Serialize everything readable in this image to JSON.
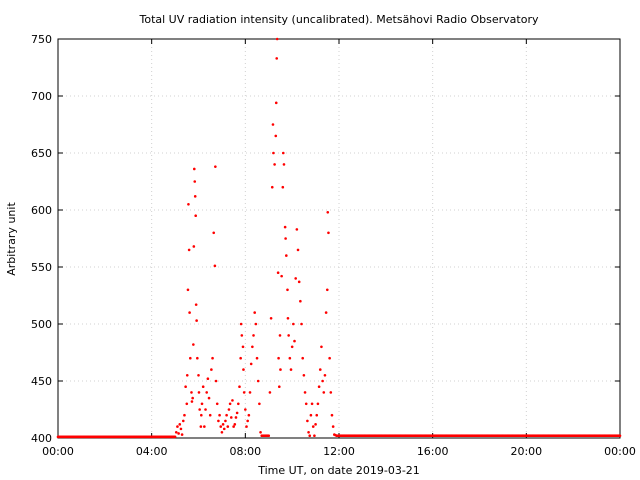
{
  "chart_data": {
    "type": "scatter",
    "title": "Total UV radiation intensity (uncalibrated). Metsähovi Radio Observatory",
    "xlabel": "Time UT, on date 2019-03-21",
    "ylabel": "Arbitrary unit",
    "xlim": [
      "00:00",
      "24:00"
    ],
    "ylim": [
      400,
      750
    ],
    "x_ticks": [
      "00:00",
      "04:00",
      "08:00",
      "12:00",
      "16:00",
      "20:00",
      "00:00"
    ],
    "y_ticks": [
      "400",
      "450",
      "500",
      "550",
      "600",
      "650",
      "700",
      "750"
    ],
    "grid": true,
    "marker_color": "#ff0000",
    "x_unit": "hours UT",
    "points": [
      [
        0.0,
        401
      ],
      [
        0.5,
        401
      ],
      [
        1.0,
        401
      ],
      [
        1.5,
        401
      ],
      [
        2.0,
        401
      ],
      [
        2.5,
        401
      ],
      [
        3.0,
        401
      ],
      [
        3.5,
        401
      ],
      [
        4.0,
        401
      ],
      [
        4.5,
        401
      ],
      [
        5.0,
        401
      ],
      [
        5.05,
        405
      ],
      [
        5.1,
        410
      ],
      [
        5.15,
        404
      ],
      [
        5.2,
        412
      ],
      [
        5.25,
        408
      ],
      [
        5.3,
        403
      ],
      [
        5.35,
        415
      ],
      [
        5.4,
        420
      ],
      [
        5.45,
        445
      ],
      [
        5.5,
        430
      ],
      [
        5.52,
        455
      ],
      [
        5.55,
        530
      ],
      [
        5.57,
        605
      ],
      [
        5.6,
        565
      ],
      [
        5.62,
        510
      ],
      [
        5.65,
        470
      ],
      [
        5.7,
        440
      ],
      [
        5.72,
        432
      ],
      [
        5.75,
        435
      ],
      [
        5.78,
        482
      ],
      [
        5.8,
        568
      ],
      [
        5.82,
        636
      ],
      [
        5.84,
        625
      ],
      [
        5.86,
        612
      ],
      [
        5.88,
        595
      ],
      [
        5.9,
        517
      ],
      [
        5.92,
        503
      ],
      [
        5.95,
        470
      ],
      [
        6.0,
        455
      ],
      [
        6.02,
        440
      ],
      [
        6.05,
        425
      ],
      [
        6.1,
        410
      ],
      [
        6.12,
        420
      ],
      [
        6.15,
        430
      ],
      [
        6.2,
        445
      ],
      [
        6.25,
        410
      ],
      [
        6.3,
        425
      ],
      [
        6.35,
        440
      ],
      [
        6.4,
        452
      ],
      [
        6.45,
        435
      ],
      [
        6.5,
        420
      ],
      [
        6.55,
        460
      ],
      [
        6.6,
        470
      ],
      [
        6.65,
        580
      ],
      [
        6.7,
        551
      ],
      [
        6.72,
        638
      ],
      [
        6.75,
        450
      ],
      [
        6.8,
        430
      ],
      [
        6.85,
        415
      ],
      [
        6.9,
        420
      ],
      [
        6.95,
        410
      ],
      [
        7.0,
        405
      ],
      [
        7.05,
        412
      ],
      [
        7.1,
        408
      ],
      [
        7.15,
        415
      ],
      [
        7.2,
        420
      ],
      [
        7.25,
        410
      ],
      [
        7.3,
        425
      ],
      [
        7.35,
        430
      ],
      [
        7.4,
        418
      ],
      [
        7.45,
        433
      ],
      [
        7.5,
        410
      ],
      [
        7.55,
        412
      ],
      [
        7.6,
        418
      ],
      [
        7.65,
        422
      ],
      [
        7.7,
        430
      ],
      [
        7.75,
        445
      ],
      [
        7.8,
        470
      ],
      [
        7.82,
        500
      ],
      [
        7.85,
        490
      ],
      [
        7.9,
        480
      ],
      [
        7.92,
        460
      ],
      [
        7.95,
        440
      ],
      [
        8.0,
        425
      ],
      [
        8.05,
        410
      ],
      [
        8.1,
        415
      ],
      [
        8.15,
        420
      ],
      [
        8.2,
        440
      ],
      [
        8.25,
        465
      ],
      [
        8.3,
        480
      ],
      [
        8.35,
        490
      ],
      [
        8.4,
        510
      ],
      [
        8.45,
        500
      ],
      [
        8.5,
        470
      ],
      [
        8.55,
        450
      ],
      [
        8.6,
        430
      ],
      [
        8.65,
        405
      ],
      [
        8.7,
        402
      ],
      [
        8.8,
        402
      ],
      [
        8.9,
        402
      ],
      [
        9.0,
        402
      ],
      [
        9.05,
        440
      ],
      [
        9.1,
        505
      ],
      [
        9.15,
        620
      ],
      [
        9.18,
        675
      ],
      [
        9.2,
        650
      ],
      [
        9.25,
        640
      ],
      [
        9.3,
        665
      ],
      [
        9.32,
        694
      ],
      [
        9.34,
        733
      ],
      [
        9.36,
        750
      ],
      [
        9.4,
        545
      ],
      [
        9.42,
        470
      ],
      [
        9.45,
        445
      ],
      [
        9.48,
        490
      ],
      [
        9.5,
        460
      ],
      [
        9.55,
        542
      ],
      [
        9.6,
        620
      ],
      [
        9.62,
        650
      ],
      [
        9.65,
        640
      ],
      [
        9.7,
        585
      ],
      [
        9.72,
        575
      ],
      [
        9.75,
        560
      ],
      [
        9.8,
        530
      ],
      [
        9.82,
        505
      ],
      [
        9.85,
        490
      ],
      [
        9.9,
        470
      ],
      [
        9.95,
        460
      ],
      [
        10.0,
        480
      ],
      [
        10.05,
        500
      ],
      [
        10.1,
        485
      ],
      [
        10.15,
        540
      ],
      [
        10.2,
        583
      ],
      [
        10.25,
        565
      ],
      [
        10.3,
        537
      ],
      [
        10.35,
        520
      ],
      [
        10.4,
        500
      ],
      [
        10.45,
        470
      ],
      [
        10.5,
        455
      ],
      [
        10.55,
        440
      ],
      [
        10.6,
        430
      ],
      [
        10.65,
        415
      ],
      [
        10.7,
        405
      ],
      [
        10.75,
        402
      ],
      [
        10.8,
        420
      ],
      [
        10.85,
        430
      ],
      [
        10.9,
        410
      ],
      [
        10.95,
        402
      ],
      [
        11.0,
        412
      ],
      [
        11.05,
        420
      ],
      [
        11.1,
        430
      ],
      [
        11.15,
        445
      ],
      [
        11.2,
        460
      ],
      [
        11.25,
        480
      ],
      [
        11.3,
        450
      ],
      [
        11.35,
        440
      ],
      [
        11.4,
        455
      ],
      [
        11.45,
        510
      ],
      [
        11.5,
        530
      ],
      [
        11.52,
        598
      ],
      [
        11.55,
        580
      ],
      [
        11.6,
        470
      ],
      [
        11.65,
        440
      ],
      [
        11.7,
        420
      ],
      [
        11.75,
        410
      ],
      [
        11.8,
        403
      ],
      [
        11.9,
        402
      ],
      [
        12.0,
        402
      ],
      [
        12.5,
        402
      ],
      [
        13.0,
        402
      ],
      [
        13.5,
        402
      ],
      [
        14.0,
        402
      ],
      [
        14.5,
        402
      ],
      [
        15.0,
        402
      ],
      [
        15.5,
        402
      ],
      [
        16.0,
        402
      ],
      [
        16.5,
        402
      ],
      [
        17.0,
        402
      ],
      [
        17.5,
        402
      ],
      [
        18.0,
        402
      ],
      [
        18.5,
        402
      ],
      [
        19.0,
        402
      ],
      [
        19.5,
        402
      ],
      [
        20.0,
        402
      ],
      [
        20.5,
        402
      ],
      [
        21.0,
        402
      ],
      [
        21.5,
        402
      ],
      [
        22.0,
        402
      ],
      [
        22.5,
        402
      ],
      [
        23.0,
        402
      ],
      [
        23.5,
        402
      ],
      [
        24.0,
        402
      ]
    ]
  }
}
